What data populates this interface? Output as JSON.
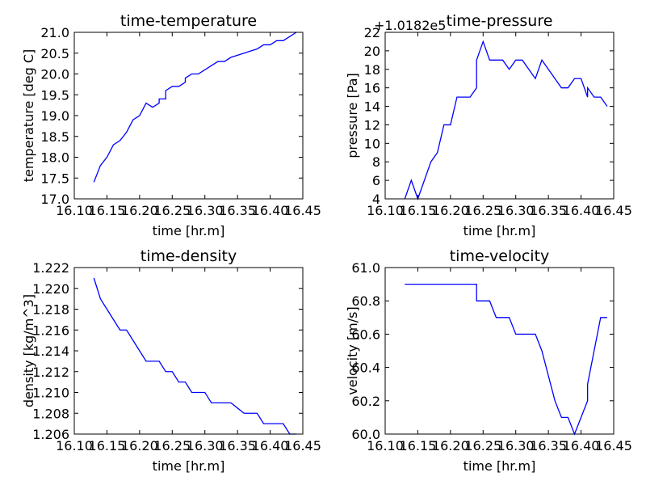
{
  "chart_data": [
    {
      "type": "line",
      "title": "time-temperature",
      "xlabel": "time [hr.m]",
      "ylabel": "temperature [deg C]",
      "xlim": [
        16.1,
        16.45
      ],
      "ylim": [
        17.0,
        21.0
      ],
      "xticks": [
        "16.10",
        "16.15",
        "16.20",
        "16.25",
        "16.30",
        "16.35",
        "16.40",
        "16.45"
      ],
      "yticks": [
        "17.0",
        "17.5",
        "18.0",
        "18.5",
        "19.0",
        "19.5",
        "20.0",
        "20.5",
        "21.0"
      ],
      "offset_text": "",
      "color": "#0000ff",
      "x": [
        16.13,
        16.14,
        16.15,
        16.16,
        16.17,
        16.18,
        16.19,
        16.2,
        16.21,
        16.22,
        16.23,
        16.23,
        16.24,
        16.24,
        16.25,
        16.26,
        16.27,
        16.27,
        16.28,
        16.29,
        16.3,
        16.31,
        16.32,
        16.33,
        16.34,
        16.35,
        16.36,
        16.37,
        16.38,
        16.39,
        16.4,
        16.41,
        16.42,
        16.43,
        16.44
      ],
      "y": [
        17.4,
        17.8,
        18.0,
        18.3,
        18.4,
        18.6,
        18.9,
        19.0,
        19.3,
        19.2,
        19.3,
        19.4,
        19.4,
        19.6,
        19.7,
        19.7,
        19.8,
        19.9,
        20.0,
        20.0,
        20.1,
        20.2,
        20.3,
        20.3,
        20.4,
        20.45,
        20.5,
        20.55,
        20.6,
        20.7,
        20.7,
        20.8,
        20.8,
        20.9,
        21.0
      ]
    },
    {
      "type": "line",
      "title": "time-pressure",
      "xlabel": "time [hr.m]",
      "ylabel": "pressure [Pa]",
      "xlim": [
        16.1,
        16.45
      ],
      "ylim": [
        4,
        22
      ],
      "xticks": [
        "16.10",
        "16.15",
        "16.20",
        "16.25",
        "16.30",
        "16.35",
        "16.40",
        "16.45"
      ],
      "yticks": [
        "4",
        "6",
        "8",
        "10",
        "12",
        "14",
        "16",
        "18",
        "20",
        "22"
      ],
      "offset_text": "+1.0182e5",
      "color": "#0000ff",
      "x": [
        16.13,
        16.14,
        16.15,
        16.16,
        16.17,
        16.18,
        16.19,
        16.2,
        16.21,
        16.22,
        16.23,
        16.24,
        16.24,
        16.25,
        16.26,
        16.27,
        16.28,
        16.29,
        16.3,
        16.31,
        16.32,
        16.33,
        16.34,
        16.35,
        16.36,
        16.37,
        16.38,
        16.39,
        16.4,
        16.41,
        16.41,
        16.42,
        16.43,
        16.44
      ],
      "y": [
        4,
        6,
        4,
        6,
        8,
        9,
        12,
        12,
        15,
        15,
        15,
        16,
        19,
        21,
        19,
        19,
        19,
        18,
        19,
        19,
        18,
        17,
        19,
        18,
        17,
        16,
        16,
        17,
        17,
        15,
        16,
        15,
        15,
        14
      ]
    },
    {
      "type": "line",
      "title": "time-density",
      "xlabel": "time [hr.m]",
      "ylabel": "density [kg/m^3]",
      "xlim": [
        16.1,
        16.45
      ],
      "ylim": [
        1.206,
        1.222
      ],
      "xticks": [
        "16.10",
        "16.15",
        "16.20",
        "16.25",
        "16.30",
        "16.35",
        "16.40",
        "16.45"
      ],
      "yticks": [
        "1.206",
        "1.208",
        "1.210",
        "1.212",
        "1.214",
        "1.216",
        "1.218",
        "1.220",
        "1.222"
      ],
      "offset_text": "",
      "color": "#0000ff",
      "x": [
        16.13,
        16.14,
        16.15,
        16.16,
        16.17,
        16.18,
        16.19,
        16.2,
        16.21,
        16.22,
        16.23,
        16.24,
        16.25,
        16.26,
        16.27,
        16.28,
        16.29,
        16.3,
        16.31,
        16.32,
        16.33,
        16.34,
        16.35,
        16.36,
        16.37,
        16.38,
        16.39,
        16.4,
        16.41,
        16.42,
        16.43,
        16.44
      ],
      "y": [
        1.221,
        1.219,
        1.218,
        1.217,
        1.216,
        1.216,
        1.215,
        1.214,
        1.213,
        1.213,
        1.213,
        1.212,
        1.212,
        1.211,
        1.211,
        1.21,
        1.21,
        1.21,
        1.209,
        1.209,
        1.209,
        1.209,
        1.2085,
        1.208,
        1.208,
        1.208,
        1.207,
        1.207,
        1.207,
        1.207,
        1.206,
        1.206
      ]
    },
    {
      "type": "line",
      "title": "time-velocity",
      "xlabel": "time [hr.m]",
      "ylabel": "velocity [m/s]",
      "xlim": [
        16.1,
        16.45
      ],
      "ylim": [
        60.0,
        61.0
      ],
      "xticks": [
        "16.10",
        "16.15",
        "16.20",
        "16.25",
        "16.30",
        "16.35",
        "16.40",
        "16.45"
      ],
      "yticks": [
        "60.0",
        "60.2",
        "60.4",
        "60.6",
        "60.8",
        "61.0"
      ],
      "offset_text": "",
      "color": "#0000ff",
      "x": [
        16.13,
        16.14,
        16.15,
        16.16,
        16.17,
        16.18,
        16.19,
        16.2,
        16.21,
        16.22,
        16.23,
        16.24,
        16.24,
        16.25,
        16.26,
        16.27,
        16.28,
        16.29,
        16.3,
        16.31,
        16.32,
        16.33,
        16.34,
        16.35,
        16.36,
        16.37,
        16.38,
        16.39,
        16.4,
        16.41,
        16.41,
        16.42,
        16.43,
        16.44
      ],
      "y": [
        60.9,
        60.9,
        60.9,
        60.9,
        60.9,
        60.9,
        60.9,
        60.9,
        60.9,
        60.9,
        60.9,
        60.9,
        60.8,
        60.8,
        60.8,
        60.7,
        60.7,
        60.7,
        60.6,
        60.6,
        60.6,
        60.6,
        60.5,
        60.35,
        60.2,
        60.1,
        60.1,
        60.0,
        60.1,
        60.2,
        60.3,
        60.5,
        60.7,
        60.7
      ]
    }
  ]
}
